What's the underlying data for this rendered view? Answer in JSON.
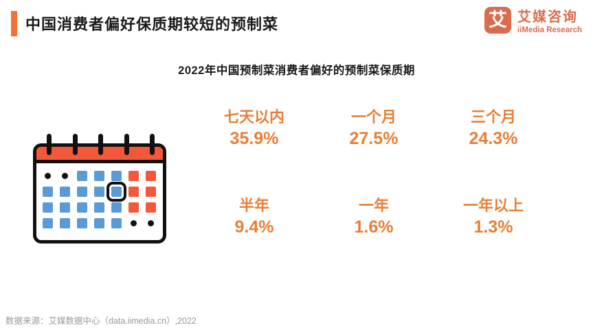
{
  "header": {
    "title": "中国消费者偏好保质期较短的预制菜",
    "accent_color": "#F4713A"
  },
  "logo": {
    "mark": "艾",
    "name_cn": "艾媒咨询",
    "name_en": "iiMedia Research",
    "color": "#DC6B4D"
  },
  "subtitle": "2022年中国预制菜消费者偏好的预制菜保质期",
  "calendar_icon": {
    "header_color": "#F4583B",
    "weekday_color": "#5B9BD5",
    "weekend_color": "#F4583B",
    "outline_color": "#111111"
  },
  "stats": {
    "text_color": "#E87E35",
    "items": [
      {
        "label": "七天以内",
        "value": "35.9%"
      },
      {
        "label": "一个月",
        "value": "27.5%"
      },
      {
        "label": "三个月",
        "value": "24.3%"
      },
      {
        "label": "半年",
        "value": "9.4%"
      },
      {
        "label": "一年",
        "value": "1.6%"
      },
      {
        "label": "一年以上",
        "value": "1.3%"
      }
    ]
  },
  "chart_data": {
    "type": "table",
    "title": "2022年中国预制菜消费者偏好的预制菜保质期",
    "categories": [
      "七天以内",
      "一个月",
      "三个月",
      "半年",
      "一年",
      "一年以上"
    ],
    "values": [
      35.9,
      27.5,
      24.3,
      9.4,
      1.6,
      1.3
    ],
    "unit": "%"
  },
  "footer": {
    "source": "数据来源：艾媒数据中心（data.iimedia.cn）,2022"
  }
}
